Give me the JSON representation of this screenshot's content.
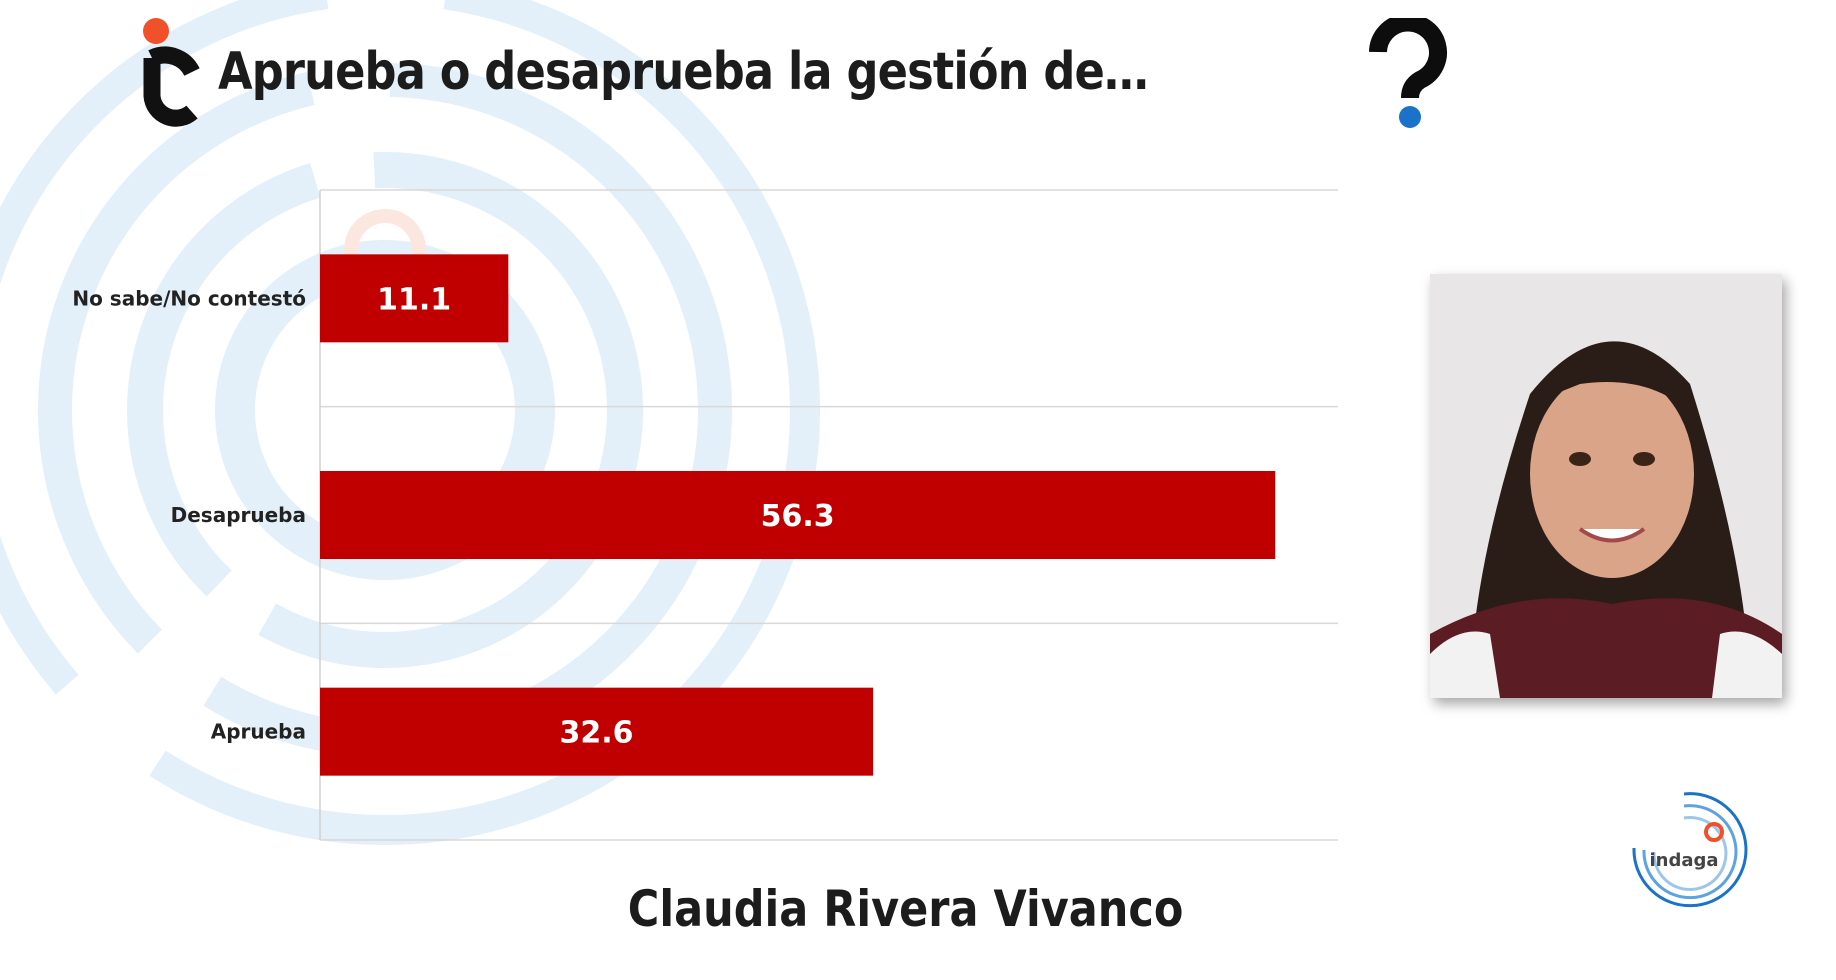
{
  "header": {
    "title": "Aprueba o desaprueba la gestión de…"
  },
  "chart_data": {
    "type": "bar",
    "orientation": "horizontal",
    "categories": [
      "No sabe/No contestó",
      "Desaprueba",
      "Aprueba"
    ],
    "values": [
      11.1,
      56.3,
      32.6
    ],
    "value_labels": [
      "11.1",
      "56.3",
      "32.6"
    ],
    "xlim": [
      0,
      60
    ],
    "grid": true,
    "bar_color": "#c00000"
  },
  "subject": {
    "name": "Claudia Rivera Vivanco"
  },
  "brand": {
    "logo_text": "indaga",
    "accent_orange": "#f0502a",
    "accent_blue": "#1a73c8",
    "ring_color": "#d9ebf7"
  }
}
